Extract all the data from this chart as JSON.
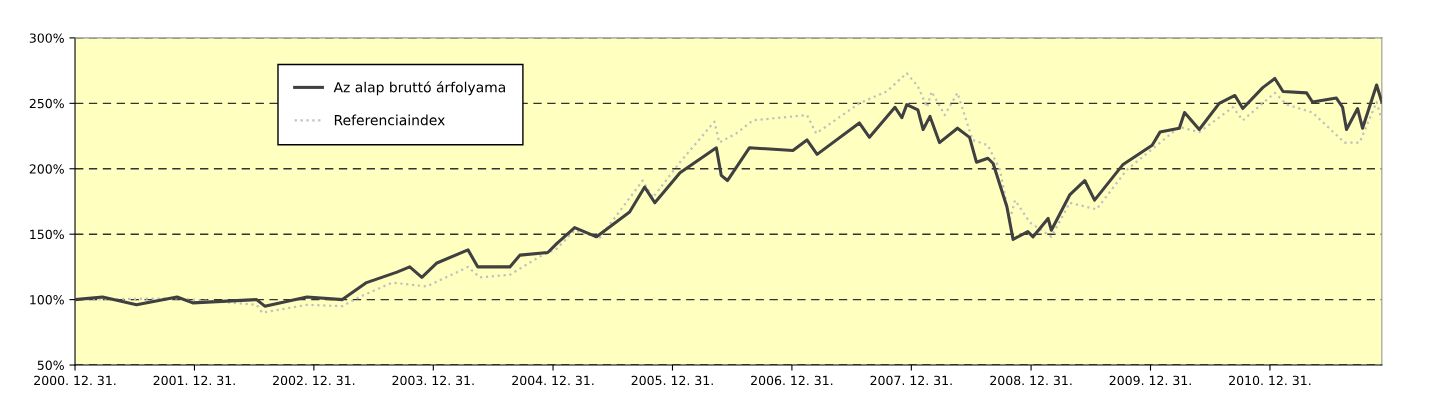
{
  "chart_data": {
    "type": "line",
    "xlim": [
      "2000-12-31",
      "2011-12-08"
    ],
    "xticks": [
      {
        "value": "2000-12-31",
        "label": "2000. 12. 31."
      },
      {
        "value": "2001-12-31",
        "label": "2001. 12. 31."
      },
      {
        "value": "2002-12-31",
        "label": "2002. 12. 31."
      },
      {
        "value": "2003-12-31",
        "label": "2003. 12. 31."
      },
      {
        "value": "2004-12-31",
        "label": "2004. 12. 31."
      },
      {
        "value": "2005-12-31",
        "label": "2005. 12. 31."
      },
      {
        "value": "2006-12-31",
        "label": "2006. 12. 31."
      },
      {
        "value": "2007-12-31",
        "label": "2007. 12. 31."
      },
      {
        "value": "2008-12-31",
        "label": "2008. 12. 31."
      },
      {
        "value": "2009-12-31",
        "label": "2009. 12. 31."
      },
      {
        "value": "2010-12-31",
        "label": "2010. 12. 31."
      }
    ],
    "ylim": [
      50,
      300
    ],
    "yticks": [
      {
        "value": 50,
        "label": "50%"
      },
      {
        "value": 100,
        "label": "100%"
      },
      {
        "value": 150,
        "label": "150%"
      },
      {
        "value": 200,
        "label": "200%"
      },
      {
        "value": 250,
        "label": "250%"
      },
      {
        "value": 300,
        "label": "300%"
      }
    ],
    "grid": "y",
    "legend": "top left",
    "marker": "none",
    "series": [
      {
        "name": "Az alap bruttó árfolyama",
        "color": "#404040",
        "line_style": "solid",
        "x": [
          "2000-12-31",
          "2001-03-25",
          "2001-07-07",
          "2001-11-08",
          "2001-12-26",
          "2002-07-09",
          "2002-08-03",
          "2002-12-10",
          "2003-03-28",
          "2003-06-10",
          "2003-09-11",
          "2003-10-20",
          "2003-11-26",
          "2004-01-11",
          "2004-04-15",
          "2004-05-15",
          "2004-08-21",
          "2004-09-21",
          "2004-12-15",
          "2005-01-12",
          "2005-03-07",
          "2005-05-13",
          "2005-08-22",
          "2005-10-07",
          "2005-11-07",
          "2006-01-23",
          "2006-05-14",
          "2006-05-29",
          "2006-06-17",
          "2006-08-23",
          "2007-01-03",
          "2007-02-15",
          "2007-03-18",
          "2007-07-25",
          "2007-08-25",
          "2007-11-11",
          "2007-12-02",
          "2007-12-17",
          "2008-01-20",
          "2008-02-05",
          "2008-02-26",
          "2008-03-26",
          "2008-05-20",
          "2008-06-26",
          "2008-07-17",
          "2008-08-21",
          "2008-09-06",
          "2008-10-18",
          "2008-11-06",
          "2008-12-21",
          "2009-01-06",
          "2009-02-21",
          "2009-03-03",
          "2009-04-28",
          "2009-06-13",
          "2009-07-13",
          "2009-10-07",
          "2010-01-05",
          "2010-01-29",
          "2010-03-29",
          "2010-04-14",
          "2010-05-29",
          "2010-07-29",
          "2010-09-15",
          "2010-10-09",
          "2010-12-09",
          "2011-01-15",
          "2011-02-09",
          "2011-04-22",
          "2011-05-10",
          "2011-07-22",
          "2011-08-10",
          "2011-08-22",
          "2011-09-25",
          "2011-10-10",
          "2011-11-22",
          "2011-12-08"
        ],
        "values": [
          100,
          102,
          96,
          102,
          97.5,
          100,
          95,
          102,
          100,
          113,
          121,
          125,
          117,
          128,
          138,
          125,
          125,
          134,
          136,
          143,
          155,
          148,
          167,
          186,
          174,
          197,
          216,
          195,
          191,
          216,
          214,
          222,
          211,
          235,
          224,
          247,
          239,
          249,
          245,
          230,
          240,
          220,
          231,
          224,
          205,
          208,
          204,
          171,
          146,
          152,
          148,
          162,
          153,
          180,
          191,
          176,
          203,
          218,
          228,
          231,
          243,
          230,
          250,
          256,
          246,
          262,
          269,
          259,
          258,
          251,
          254,
          247,
          230,
          246,
          231,
          264,
          251
        ]
      },
      {
        "name": "Referenciaindex",
        "color": "#c0c0c0",
        "line_style": "dotted",
        "x": [
          "2000-12-31",
          "2001-11-08",
          "2002-07-09",
          "2002-07-26",
          "2002-12-10",
          "2003-03-28",
          "2003-05-19",
          "2003-08-28",
          "2003-12-11",
          "2004-04-15",
          "2004-05-21",
          "2004-08-21",
          "2004-11-21",
          "2005-01-12",
          "2005-03-07",
          "2005-05-22",
          "2005-10-01",
          "2005-11-01",
          "2006-01-23",
          "2006-05-08",
          "2006-05-23",
          "2006-07-14",
          "2006-09-03",
          "2007-02-15",
          "2007-03-15",
          "2007-07-25",
          "2007-10-16",
          "2007-12-17",
          "2008-01-20",
          "2008-02-17",
          "2008-03-02",
          "2008-04-11",
          "2008-05-20",
          "2008-07-05",
          "2008-08-21",
          "2008-09-27",
          "2008-10-27",
          "2008-11-12",
          "2008-12-27",
          "2009-03-03",
          "2009-04-28",
          "2009-07-19",
          "2009-10-19",
          "2010-03-29",
          "2010-05-29",
          "2010-09-09",
          "2010-10-09",
          "2011-01-15",
          "2011-02-21",
          "2011-05-10",
          "2011-08-16",
          "2011-10-01",
          "2011-11-22",
          "2011-12-08"
        ],
        "values": [
          100,
          101,
          96,
          90,
          96,
          95,
          102,
          113,
          110,
          125,
          117,
          119,
          133,
          139,
          153,
          147,
          191,
          178,
          205,
          236,
          220,
          227,
          237,
          241,
          227,
          250,
          259,
          273,
          263,
          247,
          259,
          241,
          258,
          222,
          218,
          199,
          161,
          176,
          159,
          148,
          174,
          169,
          199,
          232,
          228,
          247,
          237,
          258,
          249,
          243,
          220,
          220,
          251,
          237
        ]
      }
    ]
  }
}
